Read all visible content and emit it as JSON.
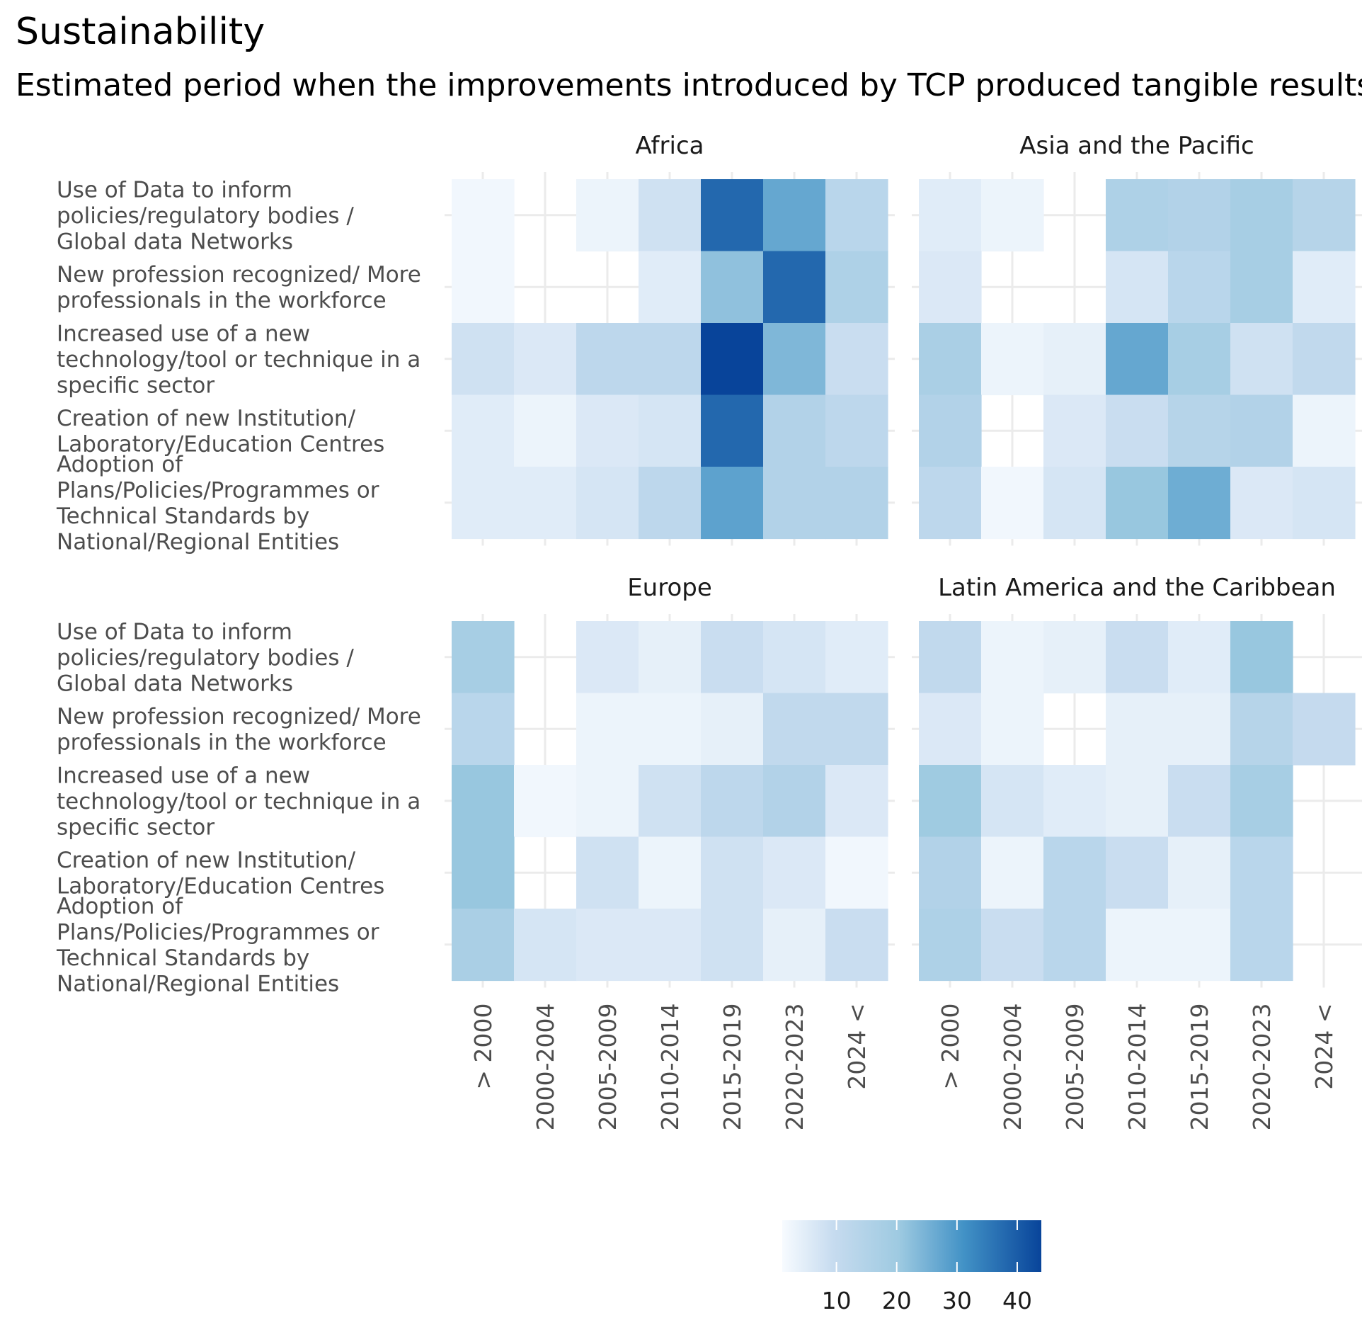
{
  "chart_data": {
    "type": "heatmap",
    "title": "Sustainability",
    "subtitle": "Estimated period when the improvements introduced by TCP produced tangible results.",
    "x_categories": [
      "> 2000",
      "2000-2004",
      "2005-2009",
      "2010-2014",
      "2015-2019",
      "2020-2023",
      "2024 <"
    ],
    "y_categories": [
      "Use of Data to inform policies/regulatory bodies / Global data Networks",
      "New profession recognized/ More professionals in the workforce",
      "Increased use of a new technology/tool or technique in a specific sector",
      "Creation of new Institution/ Laboratory/Education Centres",
      "Adoption of Plans/Policies/Programmes or Technical Standards by National/Regional Entities"
    ],
    "y_label_lines": [
      [
        "Use of Data to inform",
        "policies/regulatory bodies /",
        "Global data Networks"
      ],
      [
        "New profession recognized/ More",
        "professionals in the workforce"
      ],
      [
        "Increased use of a new",
        "technology/tool or technique in a",
        "specific sector"
      ],
      [
        "Creation of new Institution/",
        "Laboratory/Education Centres"
      ],
      [
        "Adoption of",
        "Plans/Policies/Programmes or",
        "Technical Standards by",
        "National/Regional Entities"
      ]
    ],
    "facets": [
      {
        "name": "Africa",
        "values": [
          [
            2,
            null,
            3,
            8,
            38,
            27,
            13
          ],
          [
            2,
            null,
            null,
            5,
            22,
            38,
            16
          ],
          [
            8,
            6,
            12,
            12,
            44,
            24,
            9
          ],
          [
            5,
            3,
            6,
            7,
            38,
            15,
            12
          ],
          [
            5,
            5,
            7,
            12,
            28,
            15,
            15
          ]
        ]
      },
      {
        "name": "Asia and the Pacific",
        "values": [
          [
            5,
            3,
            null,
            16,
            15,
            18,
            14
          ],
          [
            6,
            null,
            null,
            7,
            13,
            18,
            5
          ],
          [
            17,
            3,
            4,
            27,
            18,
            8,
            11
          ],
          [
            15,
            null,
            6,
            9,
            14,
            15,
            3
          ],
          [
            12,
            2,
            7,
            21,
            26,
            6,
            7
          ]
        ]
      },
      {
        "name": "Europe",
        "values": [
          [
            18,
            null,
            6,
            4,
            9,
            7,
            5
          ],
          [
            13,
            null,
            3,
            3,
            4,
            11,
            11
          ],
          [
            21,
            2,
            3,
            8,
            12,
            15,
            6
          ],
          [
            21,
            null,
            8,
            3,
            8,
            6,
            2
          ],
          [
            17,
            7,
            6,
            6,
            8,
            4,
            9
          ]
        ]
      },
      {
        "name": "Latin America and the Caribbean",
        "values": [
          [
            11,
            3,
            4,
            9,
            5,
            21,
            null
          ],
          [
            6,
            3,
            null,
            4,
            4,
            14,
            10
          ],
          [
            20,
            7,
            5,
            4,
            9,
            18,
            null
          ],
          [
            15,
            3,
            13,
            9,
            4,
            13,
            null
          ],
          [
            16,
            9,
            13,
            3,
            3,
            13,
            null
          ]
        ]
      }
    ],
    "legend": {
      "position": "bottom",
      "ticks": [
        10,
        20,
        30,
        40
      ],
      "range": [
        1,
        44
      ],
      "color_low": "#eff3ff",
      "color_high": "#08449a"
    },
    "grid": true
  }
}
